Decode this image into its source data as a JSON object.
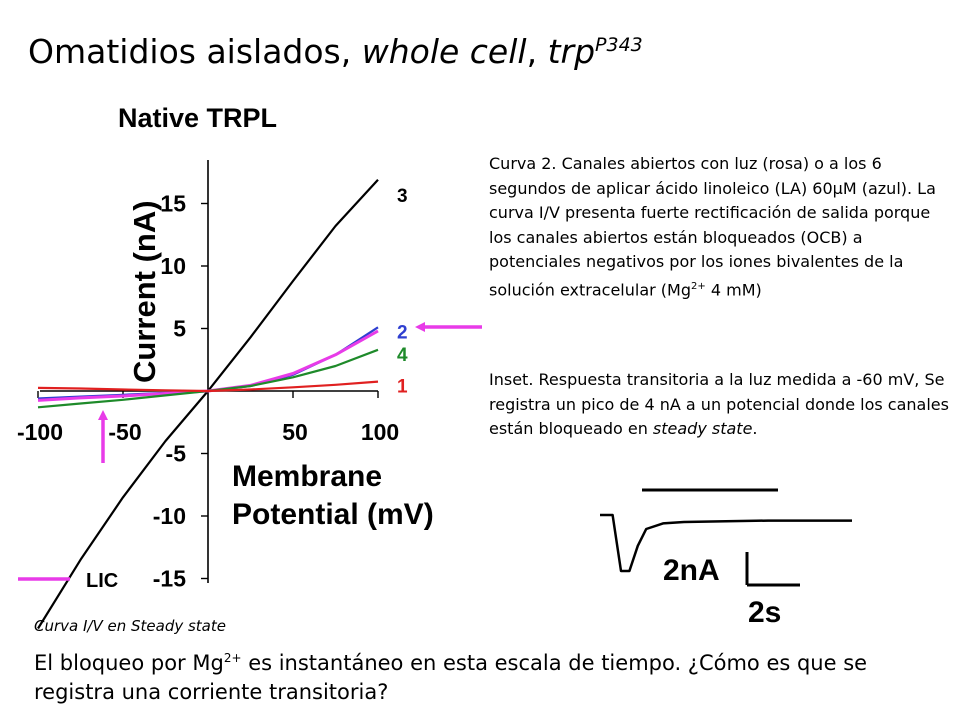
{
  "slide": {
    "title_main": "Omatidios aislados, ",
    "title_italic": "whole cell",
    "title_sep": ", ",
    "title_gene": "trp",
    "title_sup": "P343",
    "para1_part1": "Curva 2. Canales abiertos con luz (rosa) o a los 6 segundos de aplicar ácido linoleico (LA) 60",
    "para1_mu": "μ",
    "para1_part2": "M (azul). La curva I/V presenta fuerte rectificación de salida porque los canales abiertos están bloqueados (OCB) a potenciales negativos por los iones bivalentes de la solución extracelular (Mg",
    "para1_sup": "2+",
    "para1_part3": " 4 mM)",
    "para2_part1": "Inset. Respuesta transitoria a la luz medida a -60 mV, Se registra un pico de 4 nA a un potencial donde los canales están bloqueado en ",
    "para2_italic": "steady state",
    "para2_part2": ".",
    "caption": "Curva I/V en Steady state",
    "question_part1": "El bloqueo por Mg",
    "question_sup": "2+",
    "question_part2": " es instantáneo en esta escala de tiempo. ¿Cómo es que se registra una corriente transitoria?"
  },
  "chart_data": [
    {
      "type": "line",
      "title": "Native TRPL",
      "xlabel_line1": "Membrane",
      "xlabel_line2": "Potential (mV)",
      "ylabel": "Current (nA)",
      "x_ticks": [
        "-100",
        "-50",
        "50",
        "100"
      ],
      "x_tick_values": [
        -100,
        -50,
        50,
        100
      ],
      "y_ticks": [
        "15",
        "10",
        "5",
        "-5",
        "-10",
        "-15"
      ],
      "y_tick_values": [
        15,
        10,
        5,
        -5,
        -10,
        -15
      ],
      "xlim": [
        -100,
        100
      ],
      "ylim": [
        -15,
        17
      ],
      "legend": {
        "label": "LIC",
        "color": "#e83be8"
      },
      "series": [
        {
          "name": "3",
          "color": "#000000",
          "x": [
            -100,
            -75,
            -50,
            -25,
            0,
            25,
            50,
            75,
            100
          ],
          "y": [
            -19,
            -13.5,
            -8.5,
            -4,
            0,
            4.3,
            8.8,
            13.2,
            16.9
          ]
        },
        {
          "name": "2",
          "color": "#2f3fd0",
          "x": [
            -100,
            -75,
            -50,
            -25,
            0,
            25,
            50,
            75,
            100
          ],
          "y": [
            -0.6,
            -0.45,
            -0.3,
            -0.15,
            0,
            0.4,
            1.3,
            2.9,
            5.1
          ]
        },
        {
          "name": "",
          "color": "#e83be8",
          "x": [
            -100,
            -75,
            -50,
            -25,
            0,
            25,
            50,
            75,
            100
          ],
          "y": [
            -0.75,
            -0.55,
            -0.4,
            -0.2,
            0,
            0.45,
            1.4,
            2.9,
            4.8
          ]
        },
        {
          "name": "4",
          "color": "#1e8a2a",
          "x": [
            -100,
            -75,
            -50,
            -25,
            0,
            25,
            50,
            75,
            100
          ],
          "y": [
            -1.3,
            -1.0,
            -0.7,
            -0.35,
            0,
            0.4,
            1.1,
            2.0,
            3.3
          ]
        },
        {
          "name": "1",
          "color": "#e02020",
          "x": [
            -100,
            -75,
            -50,
            -25,
            0,
            25,
            50,
            75,
            100
          ],
          "y": [
            0.25,
            0.2,
            0.12,
            0.05,
            0,
            0.12,
            0.3,
            0.5,
            0.75
          ]
        }
      ]
    },
    {
      "type": "line",
      "title": "",
      "scale_current": "2nA",
      "scale_time": "2s",
      "series": [
        {
          "name": "",
          "color": "#000000",
          "t": [
            0,
            0.3,
            0.5,
            0.7,
            0.9,
            1.1,
            1.5,
            2,
            3,
            4,
            5,
            6
          ],
          "y": [
            0,
            0,
            -4,
            -4,
            -2.2,
            -1.0,
            -0.6,
            -0.5,
            -0.45,
            -0.4,
            -0.4,
            -0.4
          ]
        }
      ]
    }
  ],
  "colors": {
    "arrow": "#e83be8"
  }
}
